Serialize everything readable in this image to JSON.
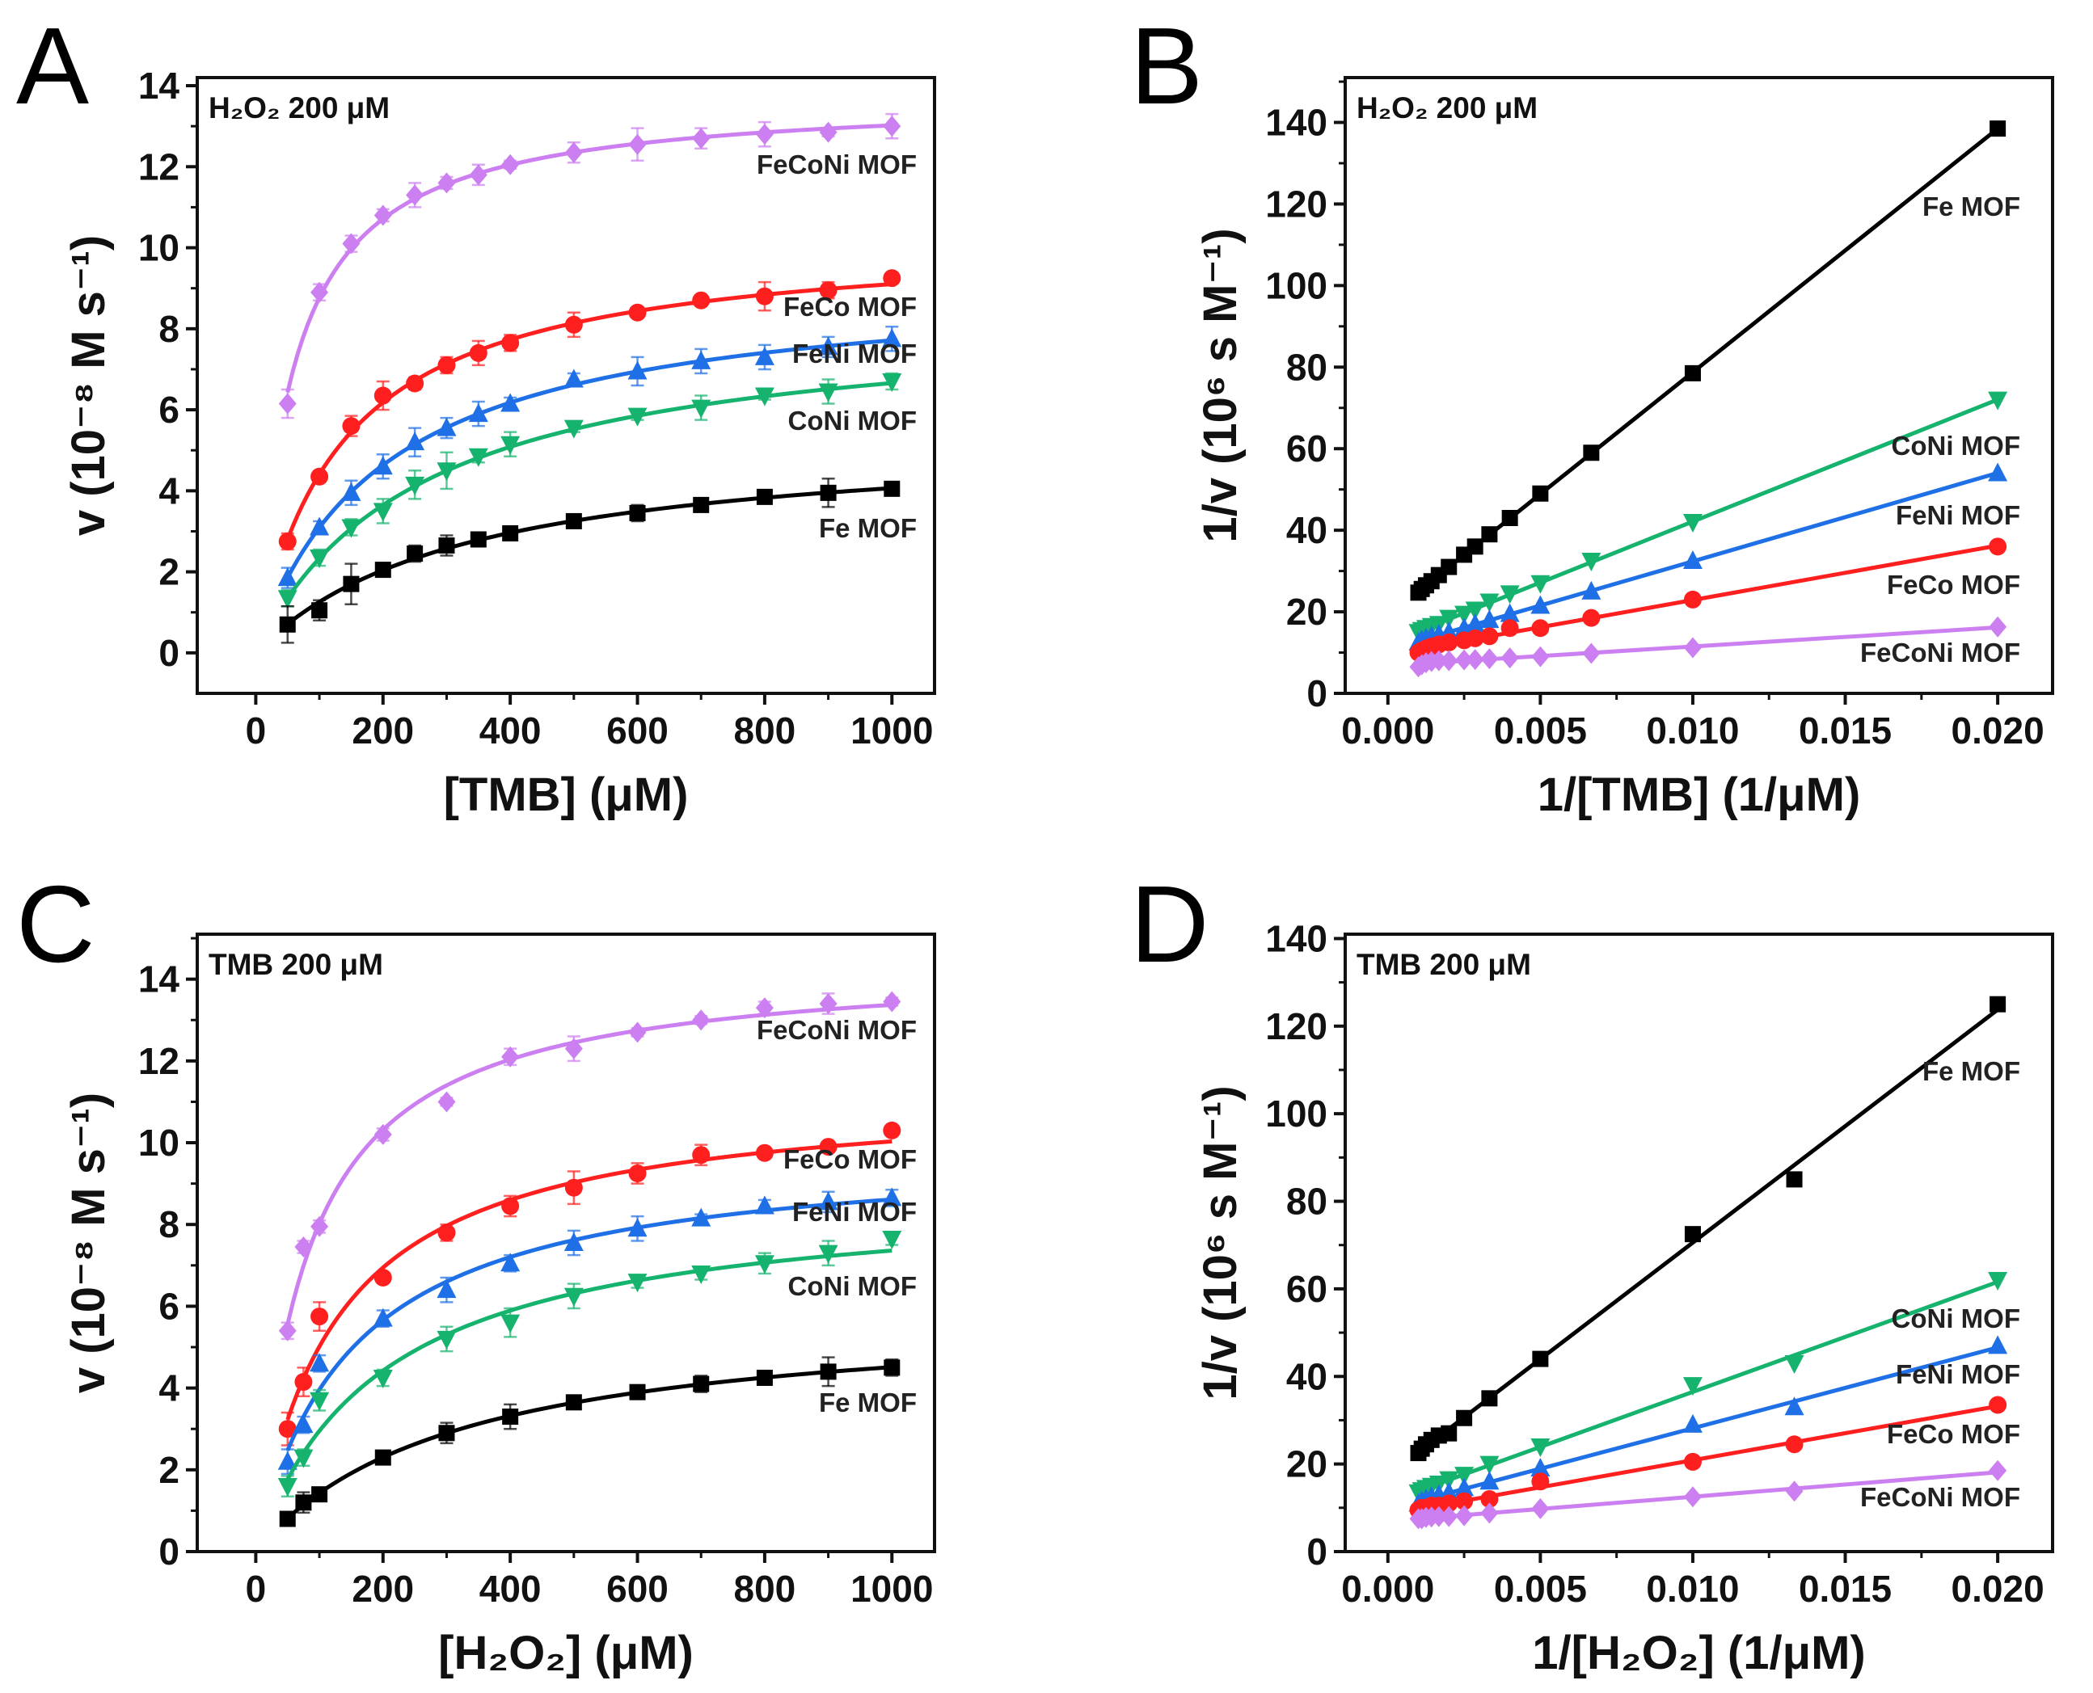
{
  "colors": {
    "FeCoNi MOF": "#cc7ff0",
    "FeCo MOF": "#ff1f1f",
    "FeNi MOF": "#1f70e6",
    "CoNi MOF": "#16b36e",
    "Fe MOF": "#000000"
  },
  "chart_data": [
    {
      "panel": "A",
      "type": "line",
      "fit": "michaelis-menten",
      "inset": "H₂O₂ 200 μM",
      "xlabel": "[TMB] (μM)",
      "ylabel": "v (10⁻⁸ M s⁻¹)",
      "xlim": [
        -92,
        1067
      ],
      "ylim": [
        -1,
        14.2
      ],
      "xticks": [
        0,
        200,
        400,
        600,
        800,
        1000
      ],
      "yticks": [
        0,
        2,
        4,
        6,
        8,
        10,
        12,
        14
      ],
      "xtick_labels": [
        "0",
        "200",
        "400",
        "600",
        "800",
        "1000"
      ],
      "ytick_labels": [
        "0",
        "2",
        "4",
        "6",
        "8",
        "10",
        "12",
        "14"
      ],
      "x": [
        50,
        100,
        150,
        200,
        250,
        300,
        350,
        400,
        500,
        600,
        700,
        800,
        900,
        1000
      ],
      "series": [
        {
          "name": "FeCoNi MOF",
          "marker": "diamond",
          "values": [
            6.15,
            8.9,
            10.1,
            10.8,
            11.3,
            11.6,
            11.8,
            12.05,
            12.35,
            12.55,
            12.7,
            12.8,
            12.85,
            13.0
          ],
          "err": [
            0.35,
            0.2,
            0.2,
            0.15,
            0.3,
            0.15,
            0.25,
            0.1,
            0.25,
            0.4,
            0.25,
            0.3,
            0.1,
            0.3
          ]
        },
        {
          "name": "FeCo MOF",
          "marker": "circle",
          "values": [
            2.75,
            4.35,
            5.6,
            6.35,
            6.65,
            7.1,
            7.4,
            7.65,
            8.1,
            8.4,
            8.7,
            8.8,
            8.95,
            9.25
          ],
          "err": [
            0.2,
            0.1,
            0.25,
            0.35,
            0.15,
            0.2,
            0.3,
            0.2,
            0.3,
            0.1,
            0.1,
            0.35,
            0.2,
            0.1
          ]
        },
        {
          "name": "FeNi MOF",
          "marker": "triangle-up",
          "values": [
            1.85,
            3.1,
            3.95,
            4.6,
            5.2,
            5.55,
            5.9,
            6.15,
            6.75,
            6.95,
            7.2,
            7.3,
            7.55,
            7.75
          ],
          "err": [
            0.25,
            0.15,
            0.3,
            0.3,
            0.35,
            0.25,
            0.3,
            0.15,
            0.15,
            0.35,
            0.3,
            0.3,
            0.25,
            0.3
          ]
        },
        {
          "name": "CoNi MOF",
          "marker": "triangle-down",
          "values": [
            1.35,
            2.35,
            3.1,
            3.5,
            4.15,
            4.5,
            4.85,
            5.15,
            5.55,
            5.85,
            6.05,
            6.35,
            6.45,
            6.7
          ],
          "err": [
            0.2,
            0.2,
            0.2,
            0.3,
            0.35,
            0.45,
            0.15,
            0.3,
            0.1,
            0.1,
            0.3,
            0.1,
            0.3,
            0.2
          ]
        },
        {
          "name": "Fe MOF",
          "marker": "square",
          "values": [
            0.7,
            1.05,
            1.7,
            2.05,
            2.45,
            2.65,
            2.8,
            2.95,
            3.25,
            3.45,
            3.65,
            3.85,
            3.95,
            4.05
          ],
          "err": [
            0.45,
            0.25,
            0.5,
            0.1,
            0.2,
            0.25,
            0.1,
            0.1,
            0.1,
            0.2,
            0.15,
            0.1,
            0.35,
            0.1
          ]
        }
      ]
    },
    {
      "panel": "B",
      "type": "scatter",
      "fit": "linear",
      "inset": "H₂O₂ 200 μM",
      "xlabel": "1/[TMB] (1/μM)",
      "ylabel": "1/v (10⁶ s M⁻¹)",
      "xlim": [
        -0.0014,
        0.0218
      ],
      "ylim": [
        0,
        151
      ],
      "xticks": [
        0,
        0.005,
        0.01,
        0.015,
        0.02
      ],
      "yticks": [
        0,
        20,
        40,
        60,
        80,
        100,
        120,
        140
      ],
      "xtick_labels": [
        "0.000",
        "0.005",
        "0.010",
        "0.015",
        "0.020"
      ],
      "ytick_labels": [
        "0",
        "20",
        "40",
        "60",
        "80",
        "100",
        "120",
        "140"
      ],
      "x": [
        0.001,
        0.00111,
        0.00125,
        0.00143,
        0.00167,
        0.002,
        0.0025,
        0.00286,
        0.00333,
        0.004,
        0.005,
        0.00667,
        0.01,
        0.02
      ],
      "series": [
        {
          "name": "Fe MOF",
          "marker": "square",
          "values": [
            24.7,
            25.6,
            26.5,
            27.5,
            29,
            31,
            34,
            36,
            39,
            43,
            49,
            59,
            78.5,
            138.5
          ]
        },
        {
          "name": "CoNi MOF",
          "marker": "triangle-down",
          "values": [
            15,
            15.5,
            16,
            16.5,
            17,
            18.5,
            19.5,
            20.5,
            22.5,
            24.5,
            27,
            32.5,
            42,
            72
          ]
        },
        {
          "name": "FeNi MOF",
          "marker": "triangle-up",
          "values": [
            12.5,
            13,
            13.5,
            14,
            14.5,
            15,
            16,
            17,
            18,
            19.5,
            21.5,
            25,
            32.5,
            54
          ]
        },
        {
          "name": "FeCo MOF",
          "marker": "circle",
          "values": [
            10,
            10.5,
            11,
            11.5,
            12,
            12.5,
            13,
            13.5,
            14,
            16,
            16,
            18.5,
            23,
            36
          ]
        },
        {
          "name": "FeCoNi MOF",
          "marker": "diamond",
          "values": [
            6.5,
            7,
            7.5,
            7.8,
            8,
            8,
            8.2,
            8.3,
            8.5,
            8.7,
            9,
            9.8,
            11.2,
            16.3
          ]
        }
      ]
    },
    {
      "panel": "C",
      "type": "line",
      "fit": "michaelis-menten",
      "inset": "TMB 200 μM",
      "xlabel": "[H₂O₂] (μM)",
      "ylabel": "v (10⁻⁸ M s⁻¹)",
      "xlim": [
        -92,
        1067
      ],
      "ylim": [
        0,
        15.1
      ],
      "xticks": [
        0,
        200,
        400,
        600,
        800,
        1000
      ],
      "yticks": [
        0,
        2,
        4,
        6,
        8,
        10,
        12,
        14
      ],
      "xtick_labels": [
        "0",
        "200",
        "400",
        "600",
        "800",
        "1000"
      ],
      "ytick_labels": [
        "0",
        "2",
        "4",
        "6",
        "8",
        "10",
        "12",
        "14"
      ],
      "x": [
        50,
        75,
        100,
        200,
        300,
        400,
        500,
        600,
        700,
        800,
        900,
        1000
      ],
      "series": [
        {
          "name": "FeCoNi MOF",
          "marker": "diamond",
          "values": [
            5.4,
            7.45,
            7.95,
            10.2,
            11.0,
            12.1,
            12.3,
            12.7,
            13.0,
            13.3,
            13.4,
            13.45
          ],
          "err": [
            0.2,
            0.15,
            0.15,
            0.15,
            0.1,
            0.2,
            0.3,
            0.1,
            0.1,
            0.15,
            0.25,
            0.1
          ]
        },
        {
          "name": "FeCo MOF",
          "marker": "circle",
          "values": [
            3.0,
            4.15,
            5.75,
            6.7,
            7.8,
            8.45,
            8.9,
            9.25,
            9.7,
            9.75,
            9.9,
            10.3
          ],
          "err": [
            0.4,
            0.35,
            0.35,
            0.1,
            0.2,
            0.25,
            0.4,
            0.25,
            0.25,
            0.1,
            0.1,
            0.1
          ]
        },
        {
          "name": "FeNi MOF",
          "marker": "triangle-up",
          "values": [
            2.2,
            3.1,
            4.6,
            5.7,
            6.4,
            7.05,
            7.55,
            7.9,
            8.15,
            8.45,
            8.55,
            8.65
          ],
          "err": [
            0.3,
            0.2,
            0.2,
            0.2,
            0.3,
            0.2,
            0.3,
            0.3,
            0.1,
            0.15,
            0.25,
            0.2
          ]
        },
        {
          "name": "CoNi MOF",
          "marker": "triangle-down",
          "values": [
            1.6,
            2.3,
            3.7,
            4.25,
            5.2,
            5.6,
            6.25,
            6.6,
            6.8,
            7.05,
            7.3,
            7.65
          ],
          "err": [
            0.25,
            0.2,
            0.25,
            0.2,
            0.3,
            0.35,
            0.3,
            0.15,
            0.15,
            0.25,
            0.3,
            0.15
          ]
        },
        {
          "name": "Fe MOF",
          "marker": "square",
          "values": [
            0.8,
            1.2,
            1.4,
            2.3,
            2.9,
            3.3,
            3.65,
            3.9,
            4.1,
            4.25,
            4.4,
            4.5
          ],
          "err": [
            0.1,
            0.25,
            0.15,
            0.1,
            0.25,
            0.3,
            0.1,
            0.15,
            0.2,
            0.1,
            0.35,
            0.2
          ]
        }
      ]
    },
    {
      "panel": "D",
      "type": "scatter",
      "fit": "linear",
      "inset": "TMB 200 μM",
      "xlabel": "1/[H₂O₂] (1/μM)",
      "ylabel": "1/v (10⁶ s M⁻¹)",
      "xlim": [
        -0.0014,
        0.0218
      ],
      "ylim": [
        0,
        141
      ],
      "xticks": [
        0,
        0.005,
        0.01,
        0.015,
        0.02
      ],
      "yticks": [
        0,
        20,
        40,
        60,
        80,
        100,
        120,
        140
      ],
      "xtick_labels": [
        "0.000",
        "0.005",
        "0.010",
        "0.015",
        "0.020"
      ],
      "ytick_labels": [
        "0",
        "20",
        "40",
        "60",
        "80",
        "100",
        "120",
        "140"
      ],
      "x": [
        0.001,
        0.00111,
        0.00125,
        0.00143,
        0.00167,
        0.002,
        0.0025,
        0.00333,
        0.005,
        0.01,
        0.01333,
        0.02
      ],
      "series": [
        {
          "name": "Fe MOF",
          "marker": "square",
          "values": [
            22.5,
            23.5,
            24.5,
            25.5,
            26.5,
            27,
            30.5,
            35,
            44,
            72.5,
            85,
            125
          ]
        },
        {
          "name": "CoNi MOF",
          "marker": "triangle-down",
          "values": [
            13.5,
            14,
            14.5,
            15,
            15.5,
            16.5,
            17.5,
            20,
            24,
            38,
            43,
            62
          ]
        },
        {
          "name": "FeNi MOF",
          "marker": "triangle-up",
          "values": [
            11,
            11.5,
            12,
            12.5,
            13,
            13.5,
            14.5,
            16,
            19,
            29,
            33,
            47
          ]
        },
        {
          "name": "FeCo MOF",
          "marker": "circle",
          "values": [
            9.5,
            10,
            10,
            10.5,
            10.5,
            11,
            11.5,
            12,
            16,
            20.5,
            24.5,
            33.5
          ]
        },
        {
          "name": "FeCoNi MOF",
          "marker": "diamond",
          "values": [
            7.5,
            7.5,
            7.8,
            7.9,
            8,
            8,
            8.2,
            8.8,
            9.8,
            12.5,
            13.8,
            18.5
          ]
        }
      ]
    }
  ]
}
